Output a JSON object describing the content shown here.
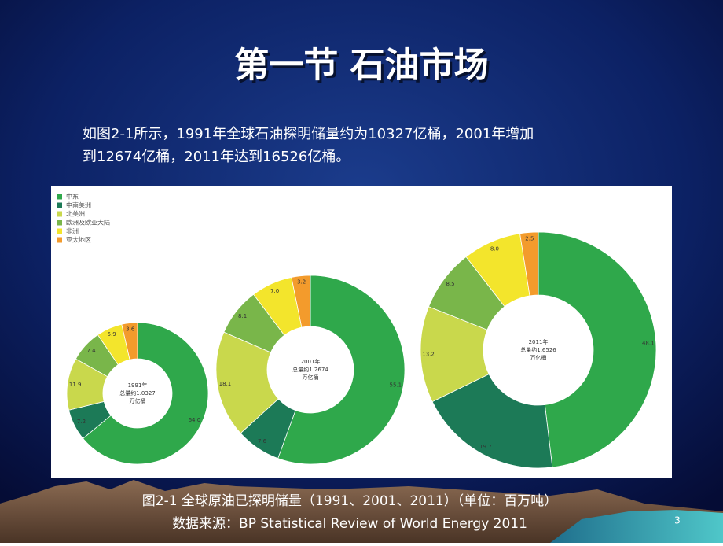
{
  "slide": {
    "title": "第一节  石油市场",
    "paragraph": [
      "如图2-1所示，1991年全球石油探明储量约为10327亿桶，2001年增加",
      "到12674亿桶，2011年达到16526亿桶。"
    ],
    "caption": [
      "图2-1 全球原油已探明储量（1991、2001、2011）（单位：百万吨）",
      "数据来源：BP Statistical Review of World Energy 2011"
    ],
    "page_number": "3"
  },
  "chart_data": {
    "type": "donut",
    "categories": [
      "中东",
      "中南美洲",
      "北美洲",
      "欧洲及欧亚大陆",
      "非洲",
      "亚太地区"
    ],
    "colors": [
      "#2fa84b",
      "#1c7a57",
      "#c9d84c",
      "#79b64a",
      "#f3e52c",
      "#f39b2c"
    ],
    "series": [
      {
        "name": "1991年",
        "center_label": "总量约1.0327",
        "unit": "万亿桶",
        "values": [
          64.0,
          7.2,
          11.9,
          7.4,
          5.9,
          3.6
        ],
        "value_labels": [
          "64.0",
          "7.2",
          "11.9",
          "7.4",
          "5.9",
          "3.6"
        ]
      },
      {
        "name": "2001年",
        "center_label": "总量约1.2674",
        "unit": "万亿桶",
        "values": [
          55.1,
          7.6,
          18.1,
          8.1,
          7.0,
          3.2
        ],
        "value_labels": [
          "55.1",
          "7.6",
          "18.1",
          "8.1",
          "7.0",
          "3.2"
        ]
      },
      {
        "name": "2011年",
        "center_label": "总量约1.6526",
        "unit": "万亿桶",
        "values": [
          48.1,
          19.7,
          13.2,
          8.5,
          8.0,
          2.5
        ],
        "value_labels": [
          "48.1",
          "19.7",
          "13.2",
          "8.5",
          "8.0",
          "2.5"
        ]
      }
    ]
  }
}
